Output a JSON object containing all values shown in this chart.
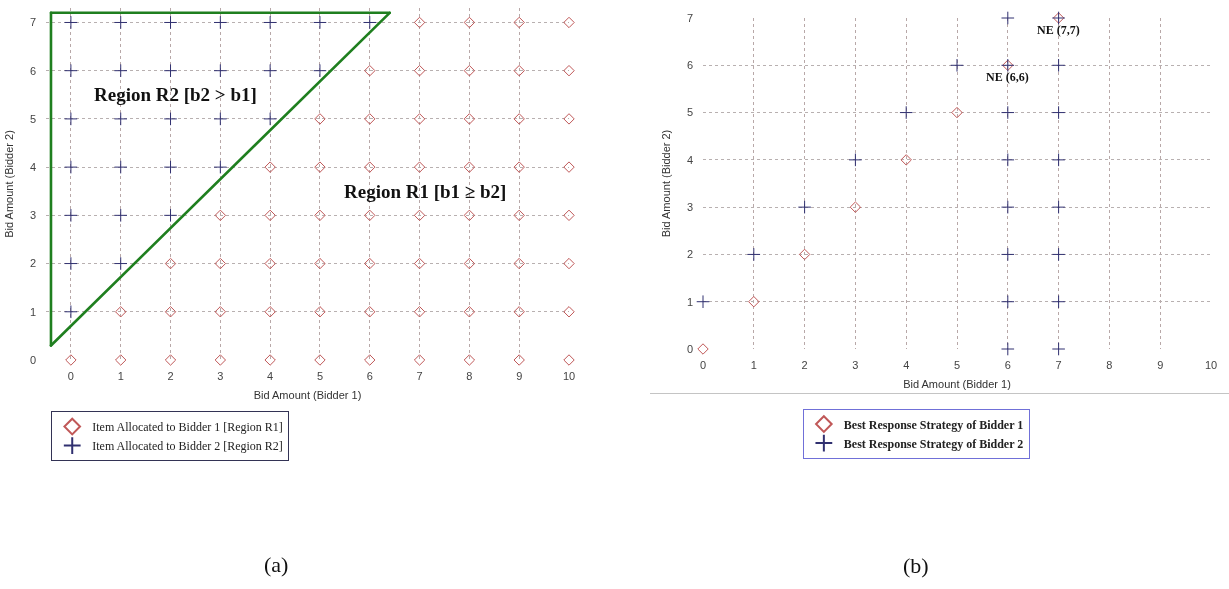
{
  "chart_data": [
    {
      "type": "scatter",
      "xlabel": "Bid Amount (Bidder 1)",
      "ylabel": "Bid Amount (Bidder 2)",
      "xlim": [
        -0.5,
        10
      ],
      "ylim": [
        0,
        7.3
      ],
      "xticks": [
        0,
        1,
        2,
        3,
        4,
        5,
        6,
        7,
        8,
        9,
        10
      ],
      "yticks": [
        0,
        1,
        2,
        3,
        4,
        5,
        6,
        7
      ],
      "grid": true,
      "legend": "bottom left",
      "series": [
        {
          "name": "Item Allocated to Bidder 1 [Region R1]",
          "color": "#c05858",
          "marker": "diamond",
          "x": [
            0,
            1,
            2,
            3,
            4,
            5,
            6,
            7,
            8,
            9,
            10,
            1,
            2,
            3,
            4,
            5,
            6,
            7,
            8,
            9,
            10,
            2,
            3,
            4,
            5,
            6,
            7,
            8,
            9,
            10,
            3,
            4,
            5,
            6,
            7,
            8,
            9,
            10,
            4,
            5,
            6,
            7,
            8,
            9,
            10,
            5,
            6,
            7,
            8,
            9,
            10,
            6,
            7,
            8,
            9,
            10,
            7,
            8,
            9,
            10
          ],
          "values": [
            0,
            0,
            0,
            0,
            0,
            0,
            0,
            0,
            0,
            0,
            0,
            1,
            1,
            1,
            1,
            1,
            1,
            1,
            1,
            1,
            1,
            2,
            2,
            2,
            2,
            2,
            2,
            2,
            2,
            2,
            3,
            3,
            3,
            3,
            3,
            3,
            3,
            3,
            4,
            4,
            4,
            4,
            4,
            4,
            4,
            5,
            5,
            5,
            5,
            5,
            5,
            6,
            6,
            6,
            6,
            6,
            7,
            7,
            7,
            7
          ]
        },
        {
          "name": "Item Allocated to Bidder 2 [Region R2]",
          "color": "#303070",
          "marker": "cross",
          "x": [
            0,
            0,
            1,
            0,
            1,
            2,
            0,
            1,
            2,
            3,
            0,
            1,
            2,
            3,
            4,
            0,
            1,
            2,
            3,
            4,
            5,
            0,
            1,
            2,
            3,
            4,
            5,
            6
          ],
          "values": [
            1,
            2,
            2,
            3,
            3,
            3,
            4,
            4,
            4,
            4,
            5,
            5,
            5,
            5,
            5,
            6,
            6,
            6,
            6,
            6,
            6,
            7,
            7,
            7,
            7,
            7,
            7,
            7
          ]
        },
        {
          "type": "line",
          "color": "#1f7f1f",
          "x": [
            -0.4,
            6.4
          ],
          "values": [
            0.3,
            7.2
          ]
        },
        {
          "type": "line",
          "color": "#1f7f1f",
          "x": [
            -0.4,
            6.4
          ],
          "values": [
            7.2,
            7.2
          ]
        },
        {
          "type": "line",
          "color": "#1f7f1f",
          "x": [
            -0.4,
            -0.4
          ],
          "values": [
            0.3,
            7.2
          ]
        }
      ],
      "annotations": [
        "Region R2 [b2 > b1]",
        "Region R1 [b1 ≥ b2]",
        "(a)"
      ]
    },
    {
      "type": "scatter",
      "xlabel": "Bid Amount (Bidder 1)",
      "ylabel": "Bid Amount (Bidder 2)",
      "xlim": [
        0,
        10
      ],
      "ylim": [
        0,
        7
      ],
      "xticks": [
        0,
        1,
        2,
        3,
        4,
        5,
        6,
        7,
        8,
        9,
        10
      ],
      "yticks": [
        0,
        1,
        2,
        3,
        4,
        5,
        6,
        7
      ],
      "grid": true,
      "legend": "bottom",
      "series": [
        {
          "name": "Best Response Strategy of Bidder 1",
          "color": "#c05858",
          "marker": "diamond",
          "x": [
            0,
            1,
            2,
            3,
            4,
            5,
            6,
            7
          ],
          "values": [
            0,
            1,
            2,
            3,
            4,
            5,
            6,
            7
          ]
        },
        {
          "name": "Best Response Strategy of Bidder 2",
          "color": "#303070",
          "marker": "cross",
          "x": [
            0,
            1,
            2,
            3,
            4,
            5,
            6,
            6,
            6,
            6,
            6,
            6,
            6,
            6,
            7,
            7,
            7,
            7,
            7,
            7,
            7,
            7
          ],
          "values": [
            1,
            2,
            3,
            4,
            5,
            6,
            0,
            1,
            2,
            3,
            4,
            5,
            6,
            7,
            0,
            1,
            2,
            3,
            4,
            5,
            6,
            7
          ]
        }
      ],
      "annotations": [
        {
          "text": "NE (6,6)",
          "x": 6,
          "y": 6
        },
        {
          "text": "NE (7,7)",
          "x": 7,
          "y": 7
        },
        "(b)"
      ]
    }
  ]
}
